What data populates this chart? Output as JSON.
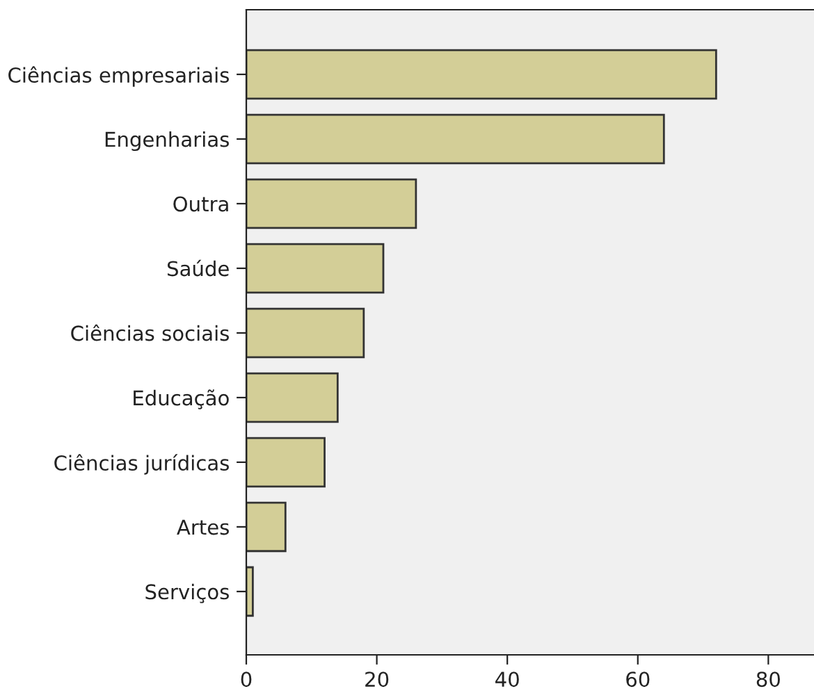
{
  "chart_data": {
    "type": "bar",
    "orientation": "horizontal",
    "categories": [
      "Ciências empresariais",
      "Engenharias",
      "Outra",
      "Saúde",
      "Ciências sociais",
      "Educação",
      "Ciências jurídicas",
      "Artes",
      "Serviços"
    ],
    "values": [
      72,
      64,
      26,
      21,
      18,
      14,
      12,
      6,
      1
    ],
    "color": "#d3ce97",
    "xlim": [
      0,
      87
    ],
    "xticks": [
      0,
      20,
      40,
      60,
      80
    ],
    "grid": false,
    "legend": false
  }
}
